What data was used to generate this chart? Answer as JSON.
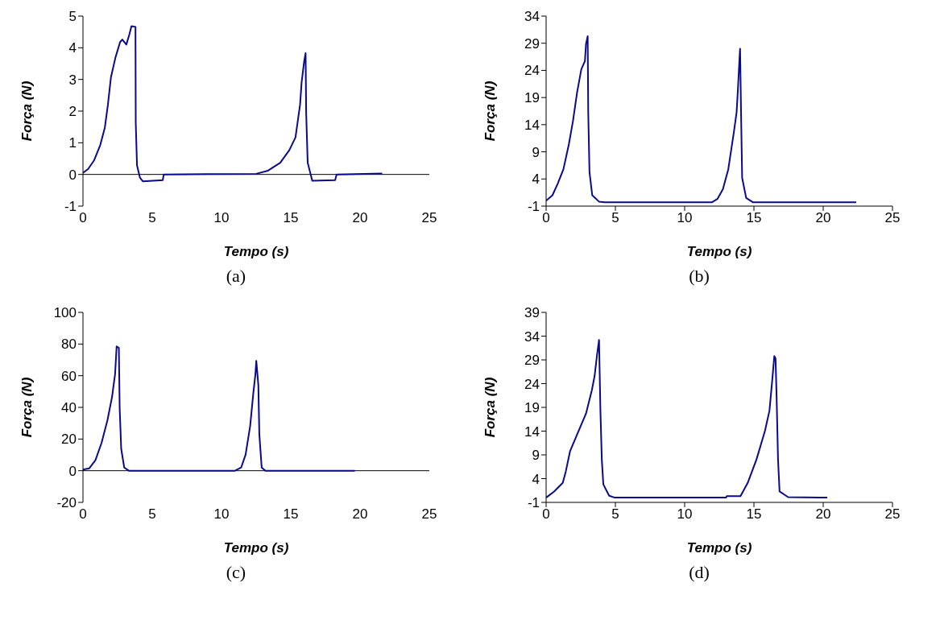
{
  "chart_data": [
    {
      "type": "line",
      "xlabel": "Tempo (s)",
      "ylabel": "Força (N)",
      "annotations": [
        "(a)"
      ],
      "color": "#0a0a8a",
      "xlim": [
        0,
        25
      ],
      "xticks": [
        0,
        5,
        10,
        15,
        20,
        25
      ],
      "ylim": [
        -1,
        5
      ],
      "yticks": [
        -1,
        0,
        1,
        2,
        3,
        4,
        5
      ],
      "ref_lines": [
        {
          "axis": "y",
          "value": 0,
          "color": "#000000"
        }
      ],
      "x": [
        0,
        0.37,
        0.81,
        1.25,
        1.58,
        1.8,
        2.02,
        2.35,
        2.68,
        2.84,
        3.13,
        3.35,
        3.5,
        3.79,
        3.81,
        3.9,
        4.11,
        4.33,
        5.76,
        5.83,
        12.5,
        13.36,
        14.24,
        14.9,
        15.34,
        15.67,
        15.78,
        15.96,
        16.07,
        16.11,
        16.22,
        16.55,
        18.2,
        18.31,
        21.6
      ],
      "values": [
        0.05,
        0.17,
        0.45,
        0.93,
        1.48,
        2.2,
        3.07,
        3.7,
        4.18,
        4.26,
        4.1,
        4.42,
        4.68,
        4.66,
        1.64,
        0.29,
        -0.1,
        -0.22,
        -0.18,
        0,
        0.02,
        0.12,
        0.37,
        0.77,
        1.17,
        2.2,
        2.9,
        3.55,
        3.83,
        1.96,
        0.37,
        -0.2,
        -0.18,
        0,
        0.03
      ]
    },
    {
      "type": "line",
      "xlabel": "Tempo (s)",
      "ylabel": "Força (N)",
      "annotations": [
        "(b)"
      ],
      "color": "#0a0a8a",
      "xlim": [
        0,
        25
      ],
      "xticks": [
        0,
        5,
        10,
        15,
        20,
        25
      ],
      "ylim": [
        -1,
        34
      ],
      "yticks": [
        -1,
        4,
        9,
        14,
        19,
        24,
        29,
        34
      ],
      "x": [
        0,
        0.46,
        0.85,
        1.25,
        1.65,
        1.94,
        2.24,
        2.54,
        2.8,
        2.88,
        3.0,
        3.04,
        3.13,
        3.33,
        3.83,
        4.23,
        11.96,
        12.36,
        12.76,
        13.15,
        13.55,
        13.75,
        13.85,
        13.95,
        14.0,
        14.07,
        14.15,
        14.44,
        14.94,
        22.38
      ],
      "values": [
        0,
        1,
        3.2,
        5.8,
        10.5,
        14.7,
        20,
        24.2,
        25.7,
        28.9,
        30.3,
        16.3,
        5.3,
        1,
        -0.2,
        -0.3,
        -0.3,
        0.3,
        2.1,
        5.8,
        12.6,
        16.3,
        20.8,
        25.8,
        28,
        16.3,
        4.2,
        0.5,
        -0.3,
        -0.3
      ]
    },
    {
      "type": "line",
      "xlabel": "Tempo (s)",
      "ylabel": "Força (N)",
      "annotations": [
        "(c)"
      ],
      "color": "#0a0a8a",
      "xlim": [
        0,
        25
      ],
      "xticks": [
        0,
        5,
        10,
        15,
        20,
        25
      ],
      "ylim": [
        -20,
        100
      ],
      "yticks": [
        -20,
        0,
        20,
        40,
        60,
        80,
        100
      ],
      "ref_lines": [
        {
          "axis": "y",
          "value": 0,
          "color": "#000000"
        }
      ],
      "x": [
        0,
        0.46,
        0.9,
        1.34,
        1.77,
        2.1,
        2.32,
        2.43,
        2.59,
        2.65,
        2.76,
        2.98,
        3.31,
        10.98,
        11.42,
        11.74,
        12.07,
        12.29,
        12.45,
        12.51,
        12.66,
        12.73,
        12.9,
        13.17,
        19.63
      ],
      "values": [
        0.7,
        1.5,
        6.6,
        17.5,
        32,
        46.6,
        61.2,
        78.5,
        77.6,
        39.3,
        13.8,
        2,
        0,
        0,
        2,
        10.2,
        28.4,
        48.5,
        61.2,
        69.4,
        53.9,
        23,
        2,
        0,
        0
      ]
    },
    {
      "type": "line",
      "xlabel": "Tempo (s)",
      "ylabel": "Força (N)",
      "annotations": [
        "(d)"
      ],
      "color": "#0a0a8a",
      "xlim": [
        0,
        25
      ],
      "xticks": [
        0,
        5,
        10,
        15,
        20,
        25
      ],
      "ylim": [
        -1,
        39
      ],
      "yticks": [
        -1,
        4,
        9,
        14,
        19,
        24,
        29,
        34,
        39
      ],
      "x": [
        0,
        0.58,
        1.2,
        1.42,
        1.73,
        2.25,
        2.88,
        3.3,
        3.5,
        3.67,
        3.82,
        3.92,
        4.02,
        4.13,
        4.55,
        4.96,
        12.99,
        13.03,
        14.03,
        14.55,
        15.18,
        15.8,
        16.12,
        16.33,
        16.47,
        16.56,
        16.64,
        16.74,
        16.85,
        17.47,
        20.29
      ],
      "values": [
        0,
        1.3,
        3.1,
        5.5,
        9.8,
        13.4,
        17.7,
        22.6,
        25.6,
        29.9,
        33.2,
        18.3,
        8,
        2.8,
        0.4,
        0,
        0,
        0.3,
        0.3,
        3.1,
        8,
        14.1,
        18.3,
        25,
        29.8,
        29.3,
        20.8,
        8,
        1.3,
        0.1,
        0
      ]
    }
  ]
}
